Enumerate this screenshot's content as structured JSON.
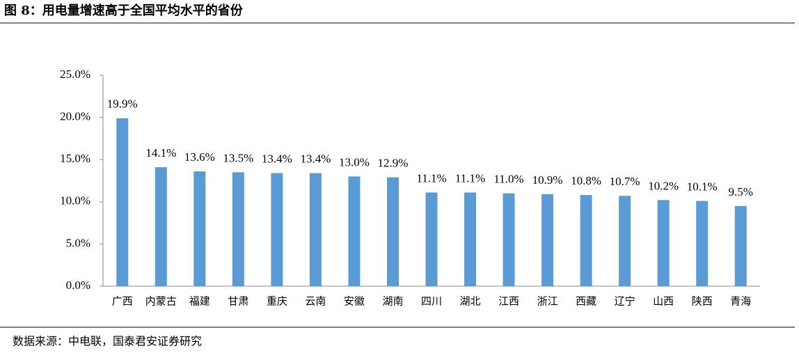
{
  "chart_data": {
    "type": "bar",
    "title": "图 8：用电量增速高于全国平均水平的省份",
    "source": "数据来源：中电联，国泰君安证券研究",
    "categories": [
      "广西",
      "内蒙古",
      "福建",
      "甘肃",
      "重庆",
      "云南",
      "安徽",
      "湖南",
      "四川",
      "湖北",
      "江西",
      "浙江",
      "西藏",
      "辽宁",
      "山西",
      "陕西",
      "青海"
    ],
    "values": [
      19.9,
      14.1,
      13.6,
      13.5,
      13.4,
      13.4,
      13.0,
      12.9,
      11.1,
      11.1,
      11.0,
      10.9,
      10.8,
      10.7,
      10.2,
      10.1,
      9.5
    ],
    "value_labels": [
      "19.9%",
      "14.1%",
      "13.6%",
      "13.5%",
      "13.4%",
      "13.4%",
      "13.0%",
      "12.9%",
      "11.1%",
      "11.1%",
      "11.0%",
      "10.9%",
      "10.8%",
      "10.7%",
      "10.2%",
      "10.1%",
      "9.5%"
    ],
    "color": "#5b9bd5",
    "ylim": [
      0,
      25
    ],
    "yticks": [
      {
        "value": 0,
        "label": "0.0%"
      },
      {
        "value": 5,
        "label": "5.0%"
      },
      {
        "value": 10,
        "label": "10.0%"
      },
      {
        "value": 15,
        "label": "15.0%"
      },
      {
        "value": 20,
        "label": "20.0%"
      },
      {
        "value": 25,
        "label": "25.0%"
      }
    ],
    "grid": false
  }
}
